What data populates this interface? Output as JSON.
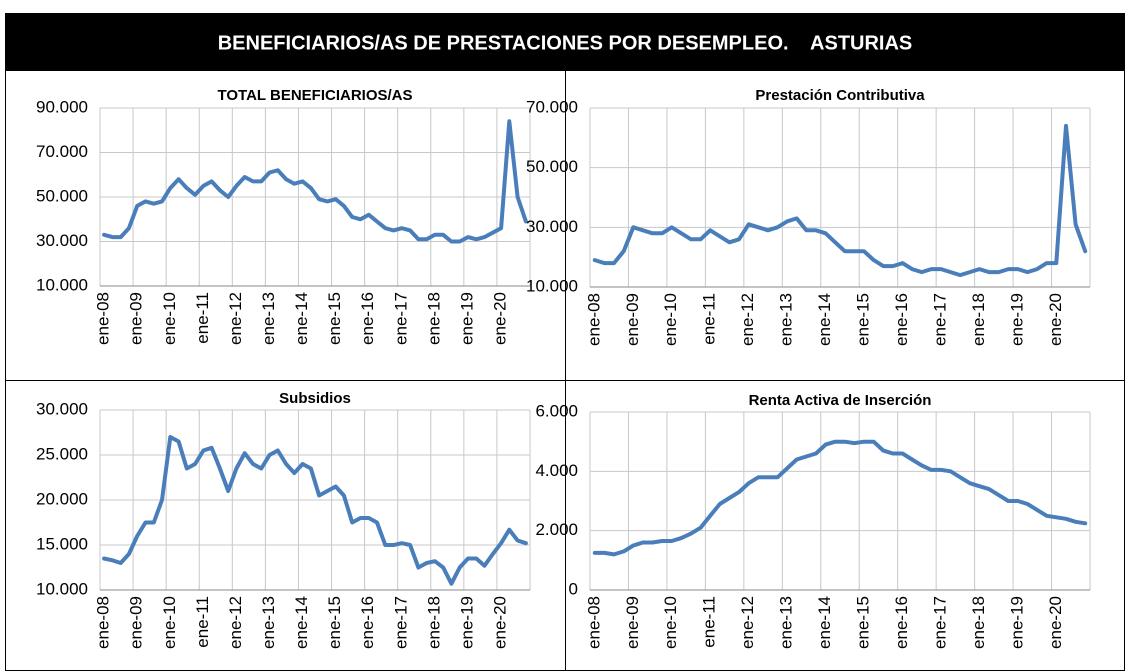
{
  "title": "BENEFICIARIOS/AS DE PRESTACIONES POR DESEMPLEO.    ASTURIAS",
  "chart_data": [
    {
      "type": "line",
      "title": "TOTAL BENEFICIARIOS/AS",
      "categories": [
        "ene-08",
        null,
        null,
        null,
        "ene-09",
        null,
        null,
        null,
        "ene-10",
        null,
        null,
        null,
        "ene-11",
        null,
        null,
        null,
        "ene-12",
        null,
        null,
        null,
        "ene-13",
        null,
        null,
        null,
        "ene-14",
        null,
        null,
        null,
        "ene-15",
        null,
        null,
        null,
        "ene-16",
        null,
        null,
        null,
        "ene-17",
        null,
        null,
        null,
        "ene-18",
        null,
        null,
        null,
        "ene-19",
        null,
        null,
        null,
        "ene-20",
        null,
        null,
        null
      ],
      "series": [
        {
          "color": "#4a7ebb",
          "values": [
            33000,
            32000,
            32000,
            36000,
            46000,
            48000,
            47000,
            48000,
            54000,
            58000,
            54000,
            51000,
            55000,
            57000,
            53000,
            50000,
            55000,
            59000,
            57000,
            57000,
            61000,
            62000,
            58000,
            56000,
            57000,
            54000,
            49000,
            48000,
            49000,
            46000,
            41000,
            40000,
            42000,
            39000,
            36000,
            35000,
            36000,
            35000,
            31000,
            31000,
            33000,
            33000,
            30000,
            30000,
            32000,
            31000,
            32000,
            34000,
            36000,
            84000,
            50000,
            39000
          ]
        }
      ],
      "ylim": [
        10000,
        90000
      ],
      "yticks": [
        {
          "value": 10000,
          "label": "10.000"
        },
        {
          "value": 30000,
          "label": "30.000"
        },
        {
          "value": 50000,
          "label": "50.000"
        },
        {
          "value": 70000,
          "label": "70.000"
        },
        {
          "value": 90000,
          "label": "90.000"
        }
      ],
      "grid": true
    },
    {
      "type": "line",
      "title": "Prestación Contributiva",
      "categories": [
        "ene-08",
        null,
        null,
        null,
        "ene-09",
        null,
        null,
        null,
        "ene-10",
        null,
        null,
        null,
        "ene-11",
        null,
        null,
        null,
        "ene-12",
        null,
        null,
        null,
        "ene-13",
        null,
        null,
        null,
        "ene-14",
        null,
        null,
        null,
        "ene-15",
        null,
        null,
        null,
        "ene-16",
        null,
        null,
        null,
        "ene-17",
        null,
        null,
        null,
        "ene-18",
        null,
        null,
        null,
        "ene-19",
        null,
        null,
        null,
        "ene-20",
        null,
        null,
        null
      ],
      "series": [
        {
          "color": "#4a7ebb",
          "values": [
            19000,
            18000,
            18000,
            22000,
            30000,
            29000,
            28000,
            28000,
            30000,
            28000,
            26000,
            26000,
            29000,
            27000,
            25000,
            26000,
            31000,
            30000,
            29000,
            30000,
            32000,
            33000,
            29000,
            29000,
            28000,
            25000,
            22000,
            22000,
            22000,
            19000,
            17000,
            17000,
            18000,
            16000,
            15000,
            16000,
            16000,
            15000,
            14000,
            15000,
            16000,
            15000,
            15000,
            16000,
            16000,
            15000,
            16000,
            18000,
            18000,
            64000,
            31000,
            22000
          ]
        }
      ],
      "ylim": [
        10000,
        70000
      ],
      "yticks": [
        {
          "value": 10000,
          "label": "10.000"
        },
        {
          "value": 30000,
          "label": "30.000"
        },
        {
          "value": 50000,
          "label": "50.000"
        },
        {
          "value": 70000,
          "label": "70.000"
        }
      ],
      "grid": true
    },
    {
      "type": "line",
      "title": "Subsidios",
      "categories": [
        "ene-08",
        null,
        null,
        null,
        "ene-09",
        null,
        null,
        null,
        "ene-10",
        null,
        null,
        null,
        "ene-11",
        null,
        null,
        null,
        "ene-12",
        null,
        null,
        null,
        "ene-13",
        null,
        null,
        null,
        "ene-14",
        null,
        null,
        null,
        "ene-15",
        null,
        null,
        null,
        "ene-16",
        null,
        null,
        null,
        "ene-17",
        null,
        null,
        null,
        "ene-18",
        null,
        null,
        null,
        "ene-19",
        null,
        null,
        null,
        "ene-20",
        null,
        null,
        null
      ],
      "series": [
        {
          "color": "#4a7ebb",
          "values": [
            13500,
            13300,
            13000,
            14000,
            16000,
            17500,
            17500,
            20000,
            27000,
            26500,
            23500,
            24000,
            25500,
            25800,
            23500,
            21000,
            23500,
            25200,
            24000,
            23500,
            25000,
            25500,
            24000,
            23000,
            24000,
            23500,
            20500,
            21000,
            21500,
            20500,
            17500,
            18000,
            18000,
            17500,
            15000,
            15000,
            15200,
            15000,
            12500,
            13000,
            13200,
            12500,
            10700,
            12500,
            13500,
            13500,
            12700,
            14000,
            15200,
            16700,
            15500,
            15200
          ]
        }
      ],
      "ylim": [
        10000,
        30000
      ],
      "yticks": [
        {
          "value": 10000,
          "label": "10.000"
        },
        {
          "value": 15000,
          "label": "15.000"
        },
        {
          "value": 20000,
          "label": "20.000"
        },
        {
          "value": 25000,
          "label": "25.000"
        },
        {
          "value": 30000,
          "label": "30.000"
        }
      ],
      "grid": true
    },
    {
      "type": "line",
      "title": "Renta Activa de Inserción",
      "categories": [
        "ene-08",
        null,
        null,
        null,
        "ene-09",
        null,
        null,
        null,
        "ene-10",
        null,
        null,
        null,
        "ene-11",
        null,
        null,
        null,
        "ene-12",
        null,
        null,
        null,
        "ene-13",
        null,
        null,
        null,
        "ene-14",
        null,
        null,
        null,
        "ene-15",
        null,
        null,
        null,
        "ene-16",
        null,
        null,
        null,
        "ene-17",
        null,
        null,
        null,
        "ene-18",
        null,
        null,
        null,
        "ene-19",
        null,
        null,
        null,
        "ene-20",
        null,
        null,
        null
      ],
      "series": [
        {
          "color": "#4a7ebb",
          "values": [
            1250,
            1250,
            1200,
            1300,
            1500,
            1600,
            1600,
            1650,
            1650,
            1750,
            1900,
            2100,
            2500,
            2900,
            3100,
            3300,
            3600,
            3800,
            3800,
            3800,
            4100,
            4400,
            4500,
            4600,
            4900,
            5000,
            5000,
            4950,
            5000,
            5000,
            4700,
            4600,
            4600,
            4400,
            4200,
            4050,
            4050,
            4000,
            3800,
            3600,
            3500,
            3400,
            3200,
            3000,
            3000,
            2900,
            2700,
            2500,
            2450,
            2400,
            2300,
            2250
          ]
        }
      ],
      "ylim": [
        0,
        6000
      ],
      "yticks": [
        0,
        {
          "value": 2000,
          "label": "2.000"
        },
        {
          "value": 4000,
          "label": "4.000"
        },
        {
          "value": 6000,
          "label": "6.000"
        }
      ],
      "grid": true
    }
  ]
}
